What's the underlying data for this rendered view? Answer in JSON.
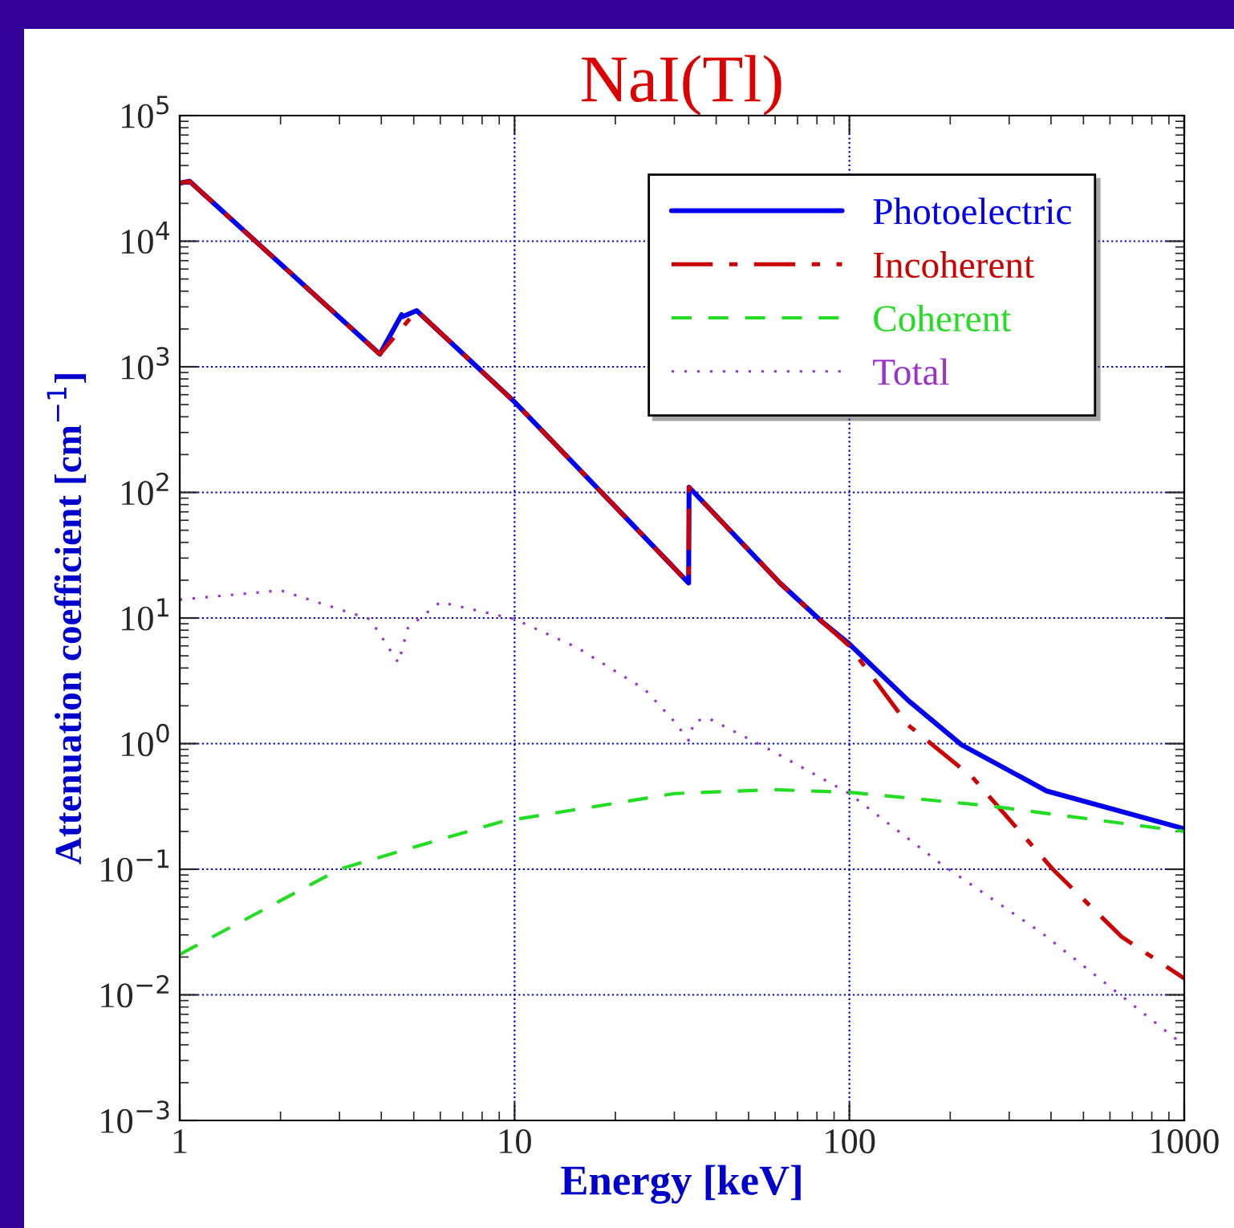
{
  "chart_data": {
    "type": "line",
    "title": "NaI(Tl)",
    "xlabel": "Energy [keV]",
    "ylabel": "Attenuation coefficient [cm$^{−1}$]",
    "log": "xy",
    "grid": true,
    "legend": "top right",
    "xlim": [
      1,
      1000
    ],
    "xticks": [
      1,
      10,
      100,
      1000
    ],
    "ylim": [
      0.001,
      100000
    ],
    "yticks": [
      {
        "value": 0.001,
        "label": "10$^{−3}$"
      },
      {
        "value": 0.01,
        "label": "10$^{−2}$"
      },
      {
        "value": 0.1,
        "label": "10$^{−1}$"
      },
      {
        "value": 1,
        "label": "10$^{0}$"
      },
      {
        "value": 10,
        "label": "10$^{1}$"
      },
      {
        "value": 100,
        "label": "10$^{2}$"
      },
      {
        "value": 1000,
        "label": "10$^{3}$"
      },
      {
        "value": 10000,
        "label": "10$^{4}$"
      },
      {
        "value": 100000,
        "label": "10$^{5}$"
      }
    ],
    "series": [
      {
        "name": "Photoelectric",
        "color": "#0000ee",
        "line_style": "solid",
        "x": [
          1,
          1.07,
          3.96,
          4.6,
          4.62,
          5.1,
          10,
          33.1,
          33.2,
          62,
          83,
          100,
          150,
          216,
          388,
          1000
        ],
        "values": [
          29000,
          30000,
          1260,
          2600,
          2500,
          2800,
          525,
          19,
          110,
          19,
          9.3,
          6.2,
          2.2,
          0.98,
          0.42,
          0.21
        ]
      },
      {
        "name": "Incoherent",
        "color": "#cc0000",
        "line_style": "dashdot",
        "x": [
          1,
          1.07,
          3.96,
          5.1,
          10,
          33.1,
          33.2,
          62,
          83,
          100,
          150,
          233,
          405,
          650,
          1000
        ],
        "values": [
          29000,
          30000,
          1260,
          2800,
          525,
          19,
          110,
          19,
          9.3,
          6.0,
          1.4,
          0.54,
          0.1,
          0.029,
          0.0135
        ]
      },
      {
        "name": "Coherent",
        "color": "#22dd22",
        "line_style": "dashed",
        "x": [
          1,
          3,
          5,
          9.2,
          30,
          59,
          100,
          260,
          1000
        ],
        "values": [
          0.021,
          0.1,
          0.15,
          0.24,
          0.4,
          0.43,
          0.41,
          0.32,
          0.2
        ]
      },
      {
        "name": "Total",
        "color": "#9933cc",
        "line_style": "dotted",
        "x": [
          1,
          2,
          3.7,
          4.5,
          4.8,
          6.0,
          10,
          15.4,
          24.5,
          30,
          33.1,
          34.4,
          37.8,
          59,
          100,
          188,
          376,
          940,
          1000
        ],
        "values": [
          14,
          16.6,
          9.8,
          4.4,
          8.3,
          13.4,
          9.8,
          5.8,
          2.7,
          1.5,
          1.06,
          1.5,
          1.6,
          0.87,
          0.4,
          0.11,
          0.031,
          0.0045,
          0.004
        ]
      }
    ]
  }
}
